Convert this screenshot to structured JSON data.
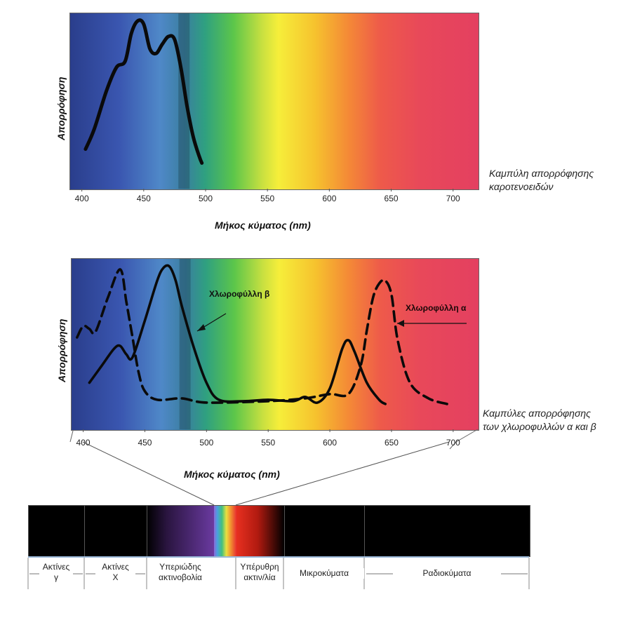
{
  "chart_data": [
    {
      "type": "line",
      "ylabel": "Απορρόφηση",
      "xlabel": "Μήκος κύματος (nm)",
      "xlim": [
        390,
        720
      ],
      "ylim": [
        0,
        1
      ],
      "ticks": [
        "400",
        "450",
        "500",
        "550",
        "600",
        "650",
        "700"
      ],
      "tick_values": [
        400,
        450,
        500,
        550,
        600,
        650,
        700
      ],
      "caption": [
        "Καμπύλη απορρόφησης",
        "καροτενοειδών"
      ],
      "series": [
        {
          "style": "solid",
          "x": [
            403,
            410,
            420,
            428,
            435,
            440,
            445,
            450,
            455,
            460,
            465,
            470,
            475,
            480,
            485,
            490,
            495,
            497
          ],
          "y": [
            0.17,
            0.3,
            0.55,
            0.7,
            0.74,
            0.92,
            1.0,
            0.98,
            0.82,
            0.79,
            0.85,
            0.9,
            0.88,
            0.7,
            0.45,
            0.25,
            0.12,
            0.08
          ]
        }
      ]
    },
    {
      "type": "line",
      "ylabel": "Απορρόφηση",
      "xlabel": "Μήκος κύματος (nm)",
      "xlim": [
        390,
        720
      ],
      "ylim": [
        0,
        1
      ],
      "ticks": [
        "400",
        "450",
        "500",
        "550",
        "600",
        "650",
        "700"
      ],
      "tick_values": [
        400,
        450,
        500,
        550,
        600,
        650,
        700
      ],
      "caption": [
        "Καμπύλες απορρόφησης",
        "των χλωροφυλλών α και β"
      ],
      "annotations": [
        "Χλωροφύλλη β",
        "Χλωροφύλλη α"
      ],
      "series": [
        {
          "name": "Χλωροφύλλη β",
          "style": "solid",
          "x": [
            405,
            415,
            425,
            430,
            435,
            440,
            450,
            460,
            465,
            470,
            475,
            480,
            490,
            500,
            510,
            530,
            550,
            570,
            580,
            590,
            600,
            610,
            615,
            620,
            630,
            640,
            645
          ],
          "y": [
            0.18,
            0.3,
            0.42,
            0.44,
            0.38,
            0.36,
            0.62,
            0.9,
            0.99,
            1.0,
            0.9,
            0.72,
            0.42,
            0.18,
            0.06,
            0.05,
            0.06,
            0.05,
            0.08,
            0.04,
            0.14,
            0.42,
            0.48,
            0.4,
            0.18,
            0.06,
            0.03
          ]
        },
        {
          "name": "Χλωροφύλλη α",
          "style": "dashed",
          "x": [
            395,
            400,
            405,
            410,
            420,
            430,
            435,
            440,
            445,
            450,
            460,
            480,
            500,
            550,
            580,
            600,
            615,
            625,
            630,
            635,
            640,
            645,
            650,
            655,
            665,
            680,
            695
          ],
          "y": [
            0.5,
            0.58,
            0.56,
            0.54,
            0.78,
            0.98,
            0.75,
            0.5,
            0.25,
            0.12,
            0.06,
            0.07,
            0.04,
            0.05,
            0.07,
            0.1,
            0.1,
            0.3,
            0.55,
            0.78,
            0.88,
            0.9,
            0.8,
            0.48,
            0.18,
            0.07,
            0.03
          ]
        }
      ]
    }
  ],
  "em_spectrum": {
    "bands": [
      {
        "label": [
          "Ακτίνες",
          "γ"
        ],
        "color": "#000000"
      },
      {
        "label": [
          "Ακτίνες",
          "Χ"
        ],
        "color": "#000000"
      },
      {
        "label": [
          "Υπεριώδης",
          "ακτινοβολία"
        ],
        "color": "#5a2a8a"
      },
      {
        "label": [
          "",
          ""
        ],
        "color": "#ffffff"
      },
      {
        "label": [
          "Υπέρυθρη",
          "ακτιν/λία"
        ],
        "color": "#d0201a"
      },
      {
        "label": [
          "Μικροκύματα",
          ""
        ],
        "color": "#000000"
      },
      {
        "label": [
          "Ραδιοκύματα",
          ""
        ],
        "color": "#000000"
      }
    ]
  }
}
